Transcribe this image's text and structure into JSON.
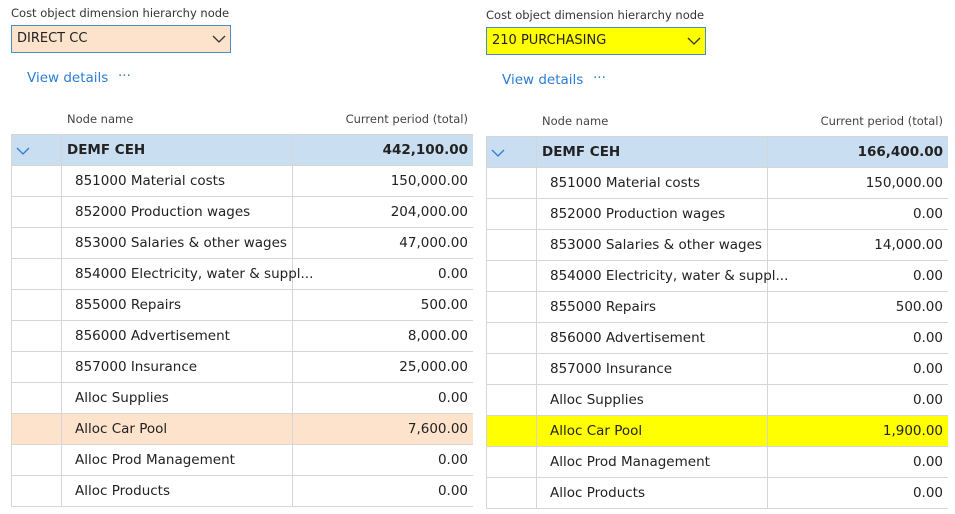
{
  "panels": [
    {
      "label": "Cost object dimension hierarchy node",
      "value": "DIRECT CC",
      "view_details": "View details",
      "more": "···",
      "columns": [
        "Node name",
        "Current period (total)"
      ],
      "rows": [
        [
          "DEMF CEH",
          "442,100.00"
        ],
        [
          "851000 Material costs",
          "150,000.00"
        ],
        [
          "852000 Production wages",
          "204,000.00"
        ],
        [
          "853000 Salaries & other wages",
          "47,000.00"
        ],
        [
          "854000 Electricity, water & suppl...",
          "0.00"
        ],
        [
          "855000 Repairs",
          "500.00"
        ],
        [
          "856000 Advertisement",
          "8,000.00"
        ],
        [
          "857000 Insurance",
          "25,000.00"
        ],
        [
          "Alloc Supplies",
          "0.00"
        ],
        [
          "Alloc Car Pool",
          "7,600.00"
        ],
        [
          "Alloc Prod Management",
          "0.00"
        ],
        [
          "Alloc Products",
          "0.00"
        ]
      ]
    },
    {
      "label": "Cost object dimension hierarchy node",
      "value": "210 PURCHASING",
      "view_details": "View details",
      "more": "···",
      "columns": [
        "Node name",
        "Current period (total)"
      ],
      "rows": [
        [
          "DEMF CEH",
          "166,400.00"
        ],
        [
          "851000 Material costs",
          "150,000.00"
        ],
        [
          "852000 Production wages",
          "0.00"
        ],
        [
          "853000 Salaries & other wages",
          "14,000.00"
        ],
        [
          "854000 Electricity, water & suppl...",
          "0.00"
        ],
        [
          "855000 Repairs",
          "500.00"
        ],
        [
          "856000 Advertisement",
          "0.00"
        ],
        [
          "857000 Insurance",
          "0.00"
        ],
        [
          "Alloc Supplies",
          "0.00"
        ],
        [
          "Alloc Car Pool",
          "1,900.00"
        ],
        [
          "Alloc Prod Management",
          "0.00"
        ],
        [
          "Alloc Products",
          "0.00"
        ]
      ]
    }
  ]
}
